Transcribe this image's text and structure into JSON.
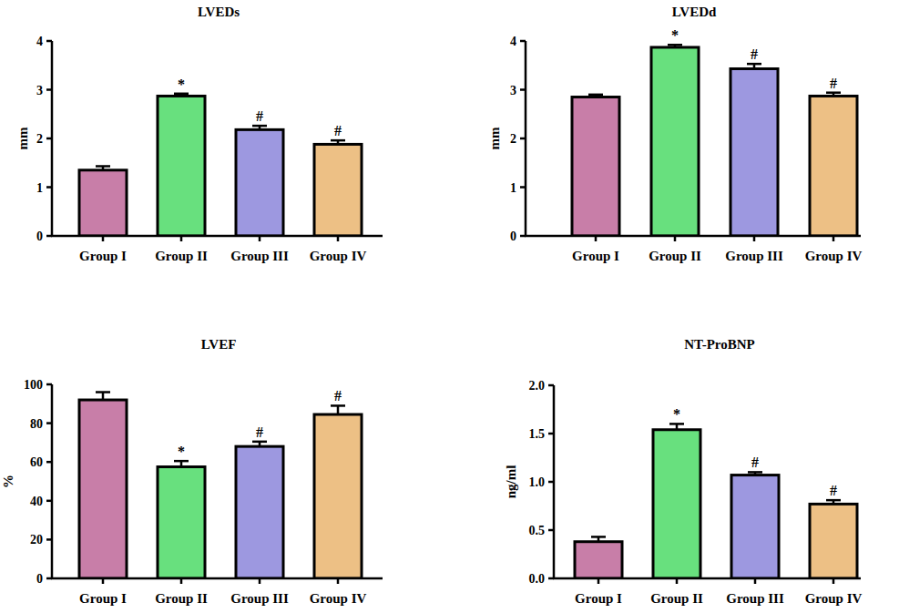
{
  "chart_data": [
    {
      "type": "bar",
      "title": "LVEDs",
      "y_label": "mm",
      "categories": [
        "Group I",
        "Group II",
        "Group III",
        "Group IV"
      ],
      "values": [
        1.35,
        2.87,
        2.18,
        1.88
      ],
      "errors": [
        0.08,
        0.05,
        0.08,
        0.08
      ],
      "annotations": [
        null,
        "*",
        "#",
        "#"
      ],
      "colors": [
        "#c87ea8",
        "#68e07e",
        "#9d98e0",
        "#edc085"
      ],
      "ylim": [
        0,
        4
      ],
      "yticks": [
        0,
        1,
        2,
        3,
        4
      ],
      "grid": false
    },
    {
      "type": "bar",
      "title": "LVEDd",
      "y_label": "mm",
      "categories": [
        "Group I",
        "Group II",
        "Group III",
        "Group IV"
      ],
      "values": [
        2.85,
        3.87,
        3.43,
        2.87
      ],
      "errors": [
        0.05,
        0.05,
        0.1,
        0.07
      ],
      "annotations": [
        null,
        "*",
        "#",
        "#"
      ],
      "colors": [
        "#c87ea8",
        "#68e07e",
        "#9d98e0",
        "#edc085"
      ],
      "ylim": [
        0,
        4
      ],
      "yticks": [
        0,
        1,
        2,
        3,
        4
      ],
      "grid": false
    },
    {
      "type": "bar",
      "title": "LVEF",
      "y_label": "%",
      "categories": [
        "Group I",
        "Group II",
        "Group III",
        "Group IV"
      ],
      "values": [
        92,
        57.5,
        68,
        84.5
      ],
      "errors": [
        4,
        3,
        2.5,
        4.5
      ],
      "annotations": [
        null,
        "*",
        "#",
        "#"
      ],
      "colors": [
        "#c87ea8",
        "#68e07e",
        "#9d98e0",
        "#edc085"
      ],
      "ylim": [
        0,
        100
      ],
      "yticks": [
        0,
        20,
        40,
        60,
        80,
        100
      ],
      "grid": false
    },
    {
      "type": "bar",
      "title": "NT-ProBNP",
      "y_label": "ng/ml",
      "categories": [
        "Group I",
        "Group II",
        "Group III",
        "Group IV"
      ],
      "values": [
        0.38,
        1.54,
        1.07,
        0.77
      ],
      "errors": [
        0.05,
        0.06,
        0.03,
        0.04
      ],
      "annotations": [
        null,
        "*",
        "#",
        "#"
      ],
      "colors": [
        "#c87ea8",
        "#68e07e",
        "#9d98e0",
        "#edc085"
      ],
      "ylim": [
        0,
        2
      ],
      "yticks": [
        {
          "value": 0,
          "label": "0.0"
        },
        0.5,
        {
          "value": 1,
          "label": "1.0"
        },
        1.5,
        {
          "value": 2,
          "label": "2.0"
        }
      ],
      "grid": false
    }
  ]
}
